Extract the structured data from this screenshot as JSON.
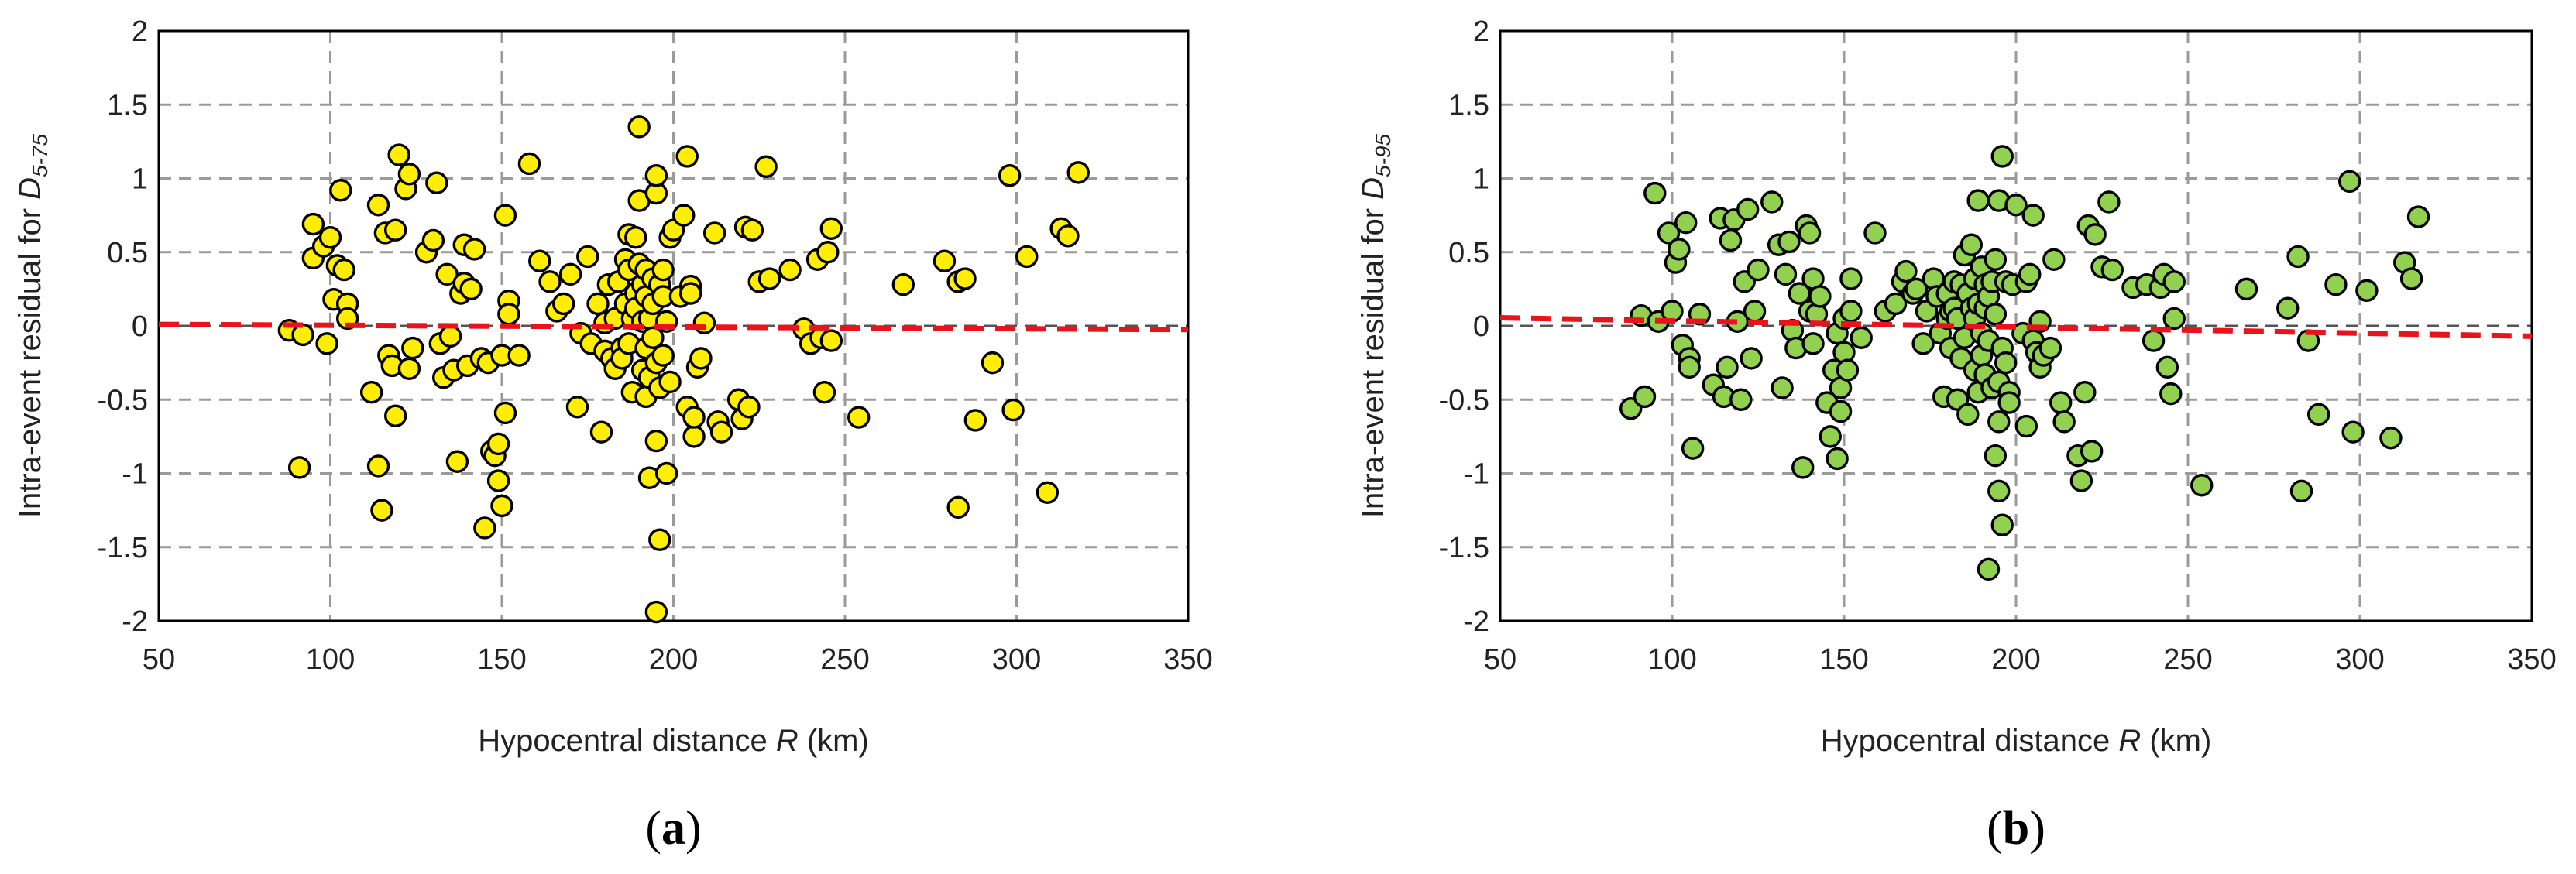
{
  "chart_data": [
    {
      "type": "scatter",
      "panel_label": "a",
      "xlabel_parts": [
        "Hypocentral distance ",
        "R",
        " (km)"
      ],
      "ylabel_parts": [
        "Intra-event residual for ",
        "D",
        "5-75"
      ],
      "xlim": [
        50,
        350
      ],
      "ylim": [
        -2,
        2
      ],
      "xticks": [
        50,
        100,
        150,
        200,
        250,
        300,
        350
      ],
      "yticks": [
        -2,
        -1.5,
        -1,
        -0.5,
        0,
        0.5,
        1,
        1.5,
        2
      ],
      "grid": true,
      "marker_color": "#ffee00",
      "trend_color": "#e8131b",
      "trend_line": {
        "x": [
          50,
          350
        ],
        "y": [
          0.01,
          -0.025
        ]
      },
      "points": [
        [
          88,
          -0.03
        ],
        [
          91,
          -0.96
        ],
        [
          92,
          -0.06
        ],
        [
          95,
          0.69
        ],
        [
          95,
          0.46
        ],
        [
          98,
          0.54
        ],
        [
          99,
          -0.12
        ],
        [
          100,
          0.6
        ],
        [
          101,
          0.18
        ],
        [
          102,
          0.41
        ],
        [
          103,
          0.92
        ],
        [
          104,
          0.38
        ],
        [
          105,
          0.15
        ],
        [
          105,
          0.05
        ],
        [
          112,
          -0.45
        ],
        [
          114,
          0.82
        ],
        [
          114,
          -0.95
        ],
        [
          115,
          -1.25
        ],
        [
          116,
          0.63
        ],
        [
          117,
          -0.2
        ],
        [
          118,
          -0.27
        ],
        [
          119,
          0.65
        ],
        [
          119,
          -0.61
        ],
        [
          120,
          1.16
        ],
        [
          122,
          0.93
        ],
        [
          123,
          1.03
        ],
        [
          123,
          -0.29
        ],
        [
          124,
          -0.15
        ],
        [
          128,
          0.5
        ],
        [
          130,
          0.58
        ],
        [
          131,
          0.97
        ],
        [
          132,
          -0.12
        ],
        [
          133,
          -0.35
        ],
        [
          134,
          0.35
        ],
        [
          135,
          -0.07
        ],
        [
          136,
          -0.3
        ],
        [
          137,
          -0.92
        ],
        [
          138,
          0.22
        ],
        [
          139,
          0.55
        ],
        [
          139,
          0.29
        ],
        [
          140,
          -0.27
        ],
        [
          141,
          0.25
        ],
        [
          142,
          0.52
        ],
        [
          144,
          -0.22
        ],
        [
          145,
          -1.37
        ],
        [
          146,
          -0.25
        ],
        [
          147,
          -0.85
        ],
        [
          148,
          -0.88
        ],
        [
          149,
          -0.8
        ],
        [
          149,
          -1.05
        ],
        [
          150,
          -1.22
        ],
        [
          150,
          -0.2
        ],
        [
          151,
          -0.59
        ],
        [
          151,
          0.75
        ],
        [
          152,
          0.17
        ],
        [
          152,
          0.08
        ],
        [
          155,
          -0.2
        ],
        [
          158,
          1.1
        ],
        [
          161,
          0.44
        ],
        [
          164,
          0.3
        ],
        [
          166,
          0.1
        ],
        [
          168,
          0.15
        ],
        [
          170,
          0.35
        ],
        [
          172,
          -0.55
        ],
        [
          173,
          -0.05
        ],
        [
          175,
          0.47
        ],
        [
          176,
          -0.12
        ],
        [
          178,
          0.15
        ],
        [
          179,
          -0.72
        ],
        [
          180,
          0.02
        ],
        [
          180,
          -0.17
        ],
        [
          181,
          0.28
        ],
        [
          182,
          -0.22
        ],
        [
          183,
          0.05
        ],
        [
          183,
          -0.29
        ],
        [
          184,
          0.3
        ],
        [
          185,
          -0.15
        ],
        [
          185,
          -0.22
        ],
        [
          186,
          0.45
        ],
        [
          186,
          0.15
        ],
        [
          187,
          0.62
        ],
        [
          187,
          -0.12
        ],
        [
          187,
          0.38
        ],
        [
          188,
          0.05
        ],
        [
          188,
          -0.45
        ],
        [
          189,
          0.22
        ],
        [
          189,
          0.6
        ],
        [
          189,
          0.12
        ],
        [
          190,
          1.35
        ],
        [
          190,
          0.85
        ],
        [
          190,
          0.42
        ],
        [
          191,
          0.28
        ],
        [
          191,
          -0.3
        ],
        [
          191,
          0.03
        ],
        [
          192,
          -0.48
        ],
        [
          192,
          -0.15
        ],
        [
          192,
          0.2
        ],
        [
          192,
          0.38
        ],
        [
          193,
          -1.03
        ],
        [
          193,
          -0.35
        ],
        [
          193,
          0.05
        ],
        [
          194,
          0.32
        ],
        [
          194,
          0.15
        ],
        [
          194,
          -0.08
        ],
        [
          195,
          -1.94
        ],
        [
          195,
          0.9
        ],
        [
          195,
          1.02
        ],
        [
          195,
          -0.25
        ],
        [
          195,
          -0.78
        ],
        [
          196,
          0.28
        ],
        [
          196,
          -0.42
        ],
        [
          196,
          -1.45
        ],
        [
          197,
          0.38
        ],
        [
          197,
          0.2
        ],
        [
          197,
          -0.2
        ],
        [
          198,
          0.03
        ],
        [
          198,
          -1.0
        ],
        [
          199,
          -0.38
        ],
        [
          199,
          0.6
        ],
        [
          200,
          0.65
        ],
        [
          202,
          0.2
        ],
        [
          203,
          0.75
        ],
        [
          204,
          -0.55
        ],
        [
          204,
          1.15
        ],
        [
          205,
          0.27
        ],
        [
          205,
          0.22
        ],
        [
          206,
          -0.75
        ],
        [
          206,
          -0.62
        ],
        [
          207,
          -0.28
        ],
        [
          208,
          -0.22
        ],
        [
          209,
          0.02
        ],
        [
          212,
          0.63
        ],
        [
          213,
          -0.65
        ],
        [
          214,
          -0.72
        ],
        [
          219,
          -0.5
        ],
        [
          220,
          -0.63
        ],
        [
          221,
          0.67
        ],
        [
          222,
          -0.55
        ],
        [
          223,
          0.65
        ],
        [
          225,
          0.3
        ],
        [
          227,
          1.08
        ],
        [
          228,
          0.32
        ],
        [
          234,
          0.38
        ],
        [
          238,
          -0.02
        ],
        [
          240,
          -0.12
        ],
        [
          242,
          0.45
        ],
        [
          243,
          -0.08
        ],
        [
          244,
          -0.45
        ],
        [
          245,
          0.5
        ],
        [
          246,
          0.66
        ],
        [
          246,
          -0.1
        ],
        [
          254,
          -0.62
        ],
        [
          267,
          0.28
        ],
        [
          279,
          0.44
        ],
        [
          283,
          0.3
        ],
        [
          283,
          -1.23
        ],
        [
          285,
          0.32
        ],
        [
          288,
          -0.64
        ],
        [
          293,
          -0.25
        ],
        [
          298,
          1.02
        ],
        [
          299,
          -0.57
        ],
        [
          303,
          0.47
        ],
        [
          309,
          -1.13
        ],
        [
          313,
          0.66
        ],
        [
          315,
          0.61
        ],
        [
          318,
          1.04
        ]
      ]
    },
    {
      "type": "scatter",
      "panel_label": "b",
      "xlabel_parts": [
        "Hypocentral distance ",
        "R",
        " (km)"
      ],
      "ylabel_parts": [
        "Intra-event residual for ",
        "D",
        "5-95"
      ],
      "xlim": [
        50,
        350
      ],
      "ylim": [
        -2,
        2
      ],
      "xticks": [
        50,
        100,
        150,
        200,
        250,
        300,
        350
      ],
      "yticks": [
        -2,
        -1.5,
        -1,
        -0.5,
        0,
        0.5,
        1,
        1.5,
        2
      ],
      "grid": true,
      "marker_color": "#92d050",
      "trend_color": "#e8131b",
      "trend_line": {
        "x": [
          50,
          350
        ],
        "y": [
          0.055,
          -0.07
        ]
      },
      "points": [
        [
          88,
          -0.56
        ],
        [
          91,
          0.07
        ],
        [
          92,
          -0.48
        ],
        [
          95,
          0.9
        ],
        [
          96,
          0.03
        ],
        [
          99,
          0.63
        ],
        [
          100,
          0.1
        ],
        [
          101,
          0.43
        ],
        [
          102,
          0.52
        ],
        [
          103,
          -0.13
        ],
        [
          104,
          0.7
        ],
        [
          105,
          -0.22
        ],
        [
          105,
          -0.28
        ],
        [
          106,
          -0.83
        ],
        [
          108,
          0.08
        ],
        [
          112,
          -0.4
        ],
        [
          114,
          0.73
        ],
        [
          115,
          -0.48
        ],
        [
          116,
          -0.28
        ],
        [
          117,
          0.58
        ],
        [
          118,
          0.72
        ],
        [
          119,
          0.03
        ],
        [
          120,
          -0.5
        ],
        [
          121,
          0.3
        ],
        [
          122,
          0.79
        ],
        [
          123,
          -0.22
        ],
        [
          124,
          0.1
        ],
        [
          125,
          0.38
        ],
        [
          129,
          0.84
        ],
        [
          131,
          0.55
        ],
        [
          132,
          -0.42
        ],
        [
          133,
          0.35
        ],
        [
          134,
          0.57
        ],
        [
          135,
          -0.03
        ],
        [
          136,
          -0.15
        ],
        [
          137,
          0.22
        ],
        [
          138,
          -0.96
        ],
        [
          139,
          0.68
        ],
        [
          140,
          0.63
        ],
        [
          140,
          0.1
        ],
        [
          141,
          0.32
        ],
        [
          141,
          -0.12
        ],
        [
          142,
          0.08
        ],
        [
          143,
          0.2
        ],
        [
          145,
          -0.52
        ],
        [
          146,
          -0.75
        ],
        [
          147,
          -0.3
        ],
        [
          148,
          -0.9
        ],
        [
          148,
          -0.05
        ],
        [
          149,
          -0.42
        ],
        [
          149,
          -0.58
        ],
        [
          150,
          0.05
        ],
        [
          150,
          -0.18
        ],
        [
          151,
          -0.3
        ],
        [
          152,
          0.1
        ],
        [
          152,
          0.32
        ],
        [
          155,
          -0.08
        ],
        [
          159,
          0.63
        ],
        [
          162,
          0.1
        ],
        [
          165,
          0.15
        ],
        [
          167,
          0.3
        ],
        [
          168,
          0.37
        ],
        [
          170,
          0.22
        ],
        [
          171,
          0.25
        ],
        [
          173,
          -0.12
        ],
        [
          174,
          0.1
        ],
        [
          176,
          0.32
        ],
        [
          177,
          0.2
        ],
        [
          178,
          -0.05
        ],
        [
          179,
          -0.48
        ],
        [
          180,
          0.22
        ],
        [
          180,
          0.05
        ],
        [
          181,
          0.1
        ],
        [
          181,
          -0.15
        ],
        [
          182,
          0.12
        ],
        [
          182,
          0.3
        ],
        [
          183,
          -0.5
        ],
        [
          183,
          0.05
        ],
        [
          184,
          -0.22
        ],
        [
          184,
          0.28
        ],
        [
          185,
          -0.08
        ],
        [
          185,
          0.48
        ],
        [
          186,
          0.22
        ],
        [
          186,
          -0.6
        ],
        [
          187,
          0.55
        ],
        [
          187,
          0.12
        ],
        [
          188,
          0.32
        ],
        [
          188,
          -0.3
        ],
        [
          188,
          0.05
        ],
        [
          189,
          0.15
        ],
        [
          189,
          -0.45
        ],
        [
          189,
          0.85
        ],
        [
          190,
          0.4
        ],
        [
          190,
          -0.2
        ],
        [
          190,
          -0.05
        ],
        [
          191,
          0.12
        ],
        [
          191,
          0.28
        ],
        [
          191,
          -0.33
        ],
        [
          192,
          -1.65
        ],
        [
          192,
          0.2
        ],
        [
          192,
          -0.1
        ],
        [
          193,
          0.3
        ],
        [
          193,
          -0.42
        ],
        [
          194,
          -0.88
        ],
        [
          194,
          0.45
        ],
        [
          194,
          0.08
        ],
        [
          195,
          -1.12
        ],
        [
          195,
          -0.38
        ],
        [
          195,
          0.85
        ],
        [
          195,
          -0.65
        ],
        [
          196,
          1.15
        ],
        [
          196,
          -1.35
        ],
        [
          196,
          -0.15
        ],
        [
          197,
          0.3
        ],
        [
          197,
          -0.25
        ],
        [
          198,
          -0.45
        ],
        [
          198,
          -0.52
        ],
        [
          199,
          0.28
        ],
        [
          200,
          0.82
        ],
        [
          202,
          -0.05
        ],
        [
          203,
          -0.68
        ],
        [
          203,
          0.3
        ],
        [
          204,
          0.35
        ],
        [
          205,
          -0.1
        ],
        [
          205,
          0.75
        ],
        [
          206,
          -0.18
        ],
        [
          207,
          -0.28
        ],
        [
          207,
          0.03
        ],
        [
          208,
          -0.2
        ],
        [
          210,
          -0.15
        ],
        [
          211,
          0.45
        ],
        [
          213,
          -0.52
        ],
        [
          214,
          -0.65
        ],
        [
          218,
          -0.88
        ],
        [
          219,
          -1.05
        ],
        [
          220,
          -0.45
        ],
        [
          221,
          0.68
        ],
        [
          222,
          -0.85
        ],
        [
          223,
          0.62
        ],
        [
          225,
          0.4
        ],
        [
          227,
          0.84
        ],
        [
          228,
          0.38
        ],
        [
          234,
          0.26
        ],
        [
          238,
          0.28
        ],
        [
          240,
          -0.1
        ],
        [
          242,
          0.26
        ],
        [
          243,
          0.35
        ],
        [
          244,
          -0.28
        ],
        [
          245,
          -0.46
        ],
        [
          246,
          0.3
        ],
        [
          246,
          0.05
        ],
        [
          254,
          -1.08
        ],
        [
          267,
          0.25
        ],
        [
          279,
          0.12
        ],
        [
          282,
          0.47
        ],
        [
          283,
          -1.12
        ],
        [
          285,
          -0.1
        ],
        [
          288,
          -0.6
        ],
        [
          293,
          0.28
        ],
        [
          297,
          0.98
        ],
        [
          298,
          -0.72
        ],
        [
          302,
          0.24
        ],
        [
          309,
          -0.76
        ],
        [
          313,
          0.43
        ],
        [
          315,
          0.32
        ],
        [
          317,
          0.74
        ]
      ]
    }
  ]
}
